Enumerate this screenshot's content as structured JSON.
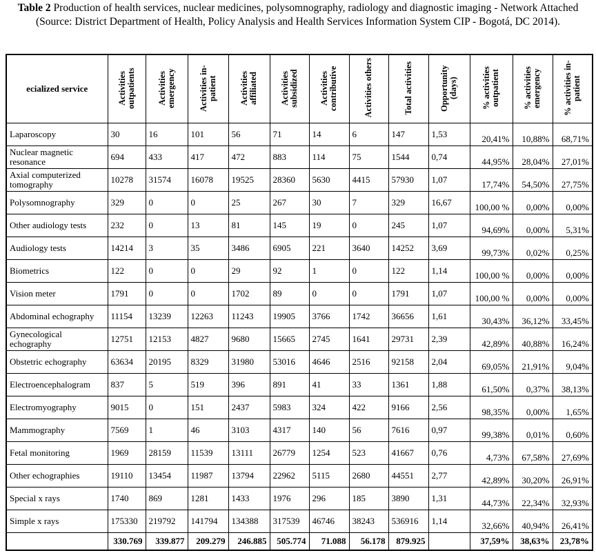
{
  "caption": {
    "label": "Table 2",
    "text": "Production of health services, nuclear medicines, polysomnography, radiology and diagnostic imaging - Network Attached (Source: District Department of Health, Policy Analysis and Health Services Information System CIP - Bogotá, DC 2014)."
  },
  "table": {
    "header": [
      "ecialized service",
      "Activities outpatients",
      "Activities emergency",
      "Activities in-patient",
      "Activities affiliated",
      "Activities subsidized",
      "Activities contributive",
      "Activities others",
      "Total activities",
      "Opportunity (days)",
      "% activities outpatient",
      "% activities emergency",
      "% activities in-patient"
    ],
    "rows": [
      [
        "Laparoscopy",
        "30",
        "16",
        "101",
        "56",
        "71",
        "14",
        "6",
        "147",
        "1,53",
        "20,41%",
        "10,88%",
        "68,71%"
      ],
      [
        "Nuclear magnetic resonance",
        "694",
        "433",
        "417",
        "472",
        "883",
        "114",
        "75",
        "1544",
        "0,74",
        "44,95%",
        "28,04%",
        "27,01%"
      ],
      [
        "Axial computerized tomography",
        "10278",
        "31574",
        "16078",
        "19525",
        "28360",
        "5630",
        "4415",
        "57930",
        "1,07",
        "17,74%",
        "54,50%",
        "27,75%"
      ],
      [
        "Polysomnography",
        "329",
        "0",
        "0",
        "25",
        "267",
        "30",
        "7",
        "329",
        "16,67",
        "100,00 %",
        "0,00%",
        "0,00%"
      ],
      [
        "Other audiology tests",
        "232",
        "0",
        "13",
        "81",
        "145",
        "19",
        "0",
        "245",
        "1,07",
        "94,69%",
        "0,00%",
        "5,31%"
      ],
      [
        "Audiology tests",
        "14214",
        "3",
        "35",
        "3486",
        "6905",
        "221",
        "3640",
        "14252",
        "3,69",
        "99,73%",
        "0,02%",
        "0,25%"
      ],
      [
        "Biometrics",
        "122",
        "0",
        "0",
        "29",
        "92",
        "1",
        "0",
        "122",
        "1,14",
        "100,00 %",
        "0,00%",
        "0,00%"
      ],
      [
        "Vision meter",
        "1791",
        "0",
        "0",
        "1702",
        "89",
        "0",
        "0",
        "1791",
        "1,07",
        "100,00 %",
        "0,00%",
        "0,00%"
      ],
      [
        "Abdominal echography",
        "11154",
        "13239",
        "12263",
        "11243",
        "19905",
        "3766",
        "1742",
        "36656",
        "1,61",
        "30,43%",
        "36,12%",
        "33,45%"
      ],
      [
        "Gynecological echography",
        "12751",
        "12153",
        "4827",
        "9680",
        "15665",
        "2745",
        "1641",
        "29731",
        "2,39",
        "42,89%",
        "40,88%",
        "16,24%"
      ],
      [
        "Obstetric echography",
        "63634",
        "20195",
        "8329",
        "31980",
        "53016",
        "4646",
        "2516",
        "92158",
        "2,04",
        "69,05%",
        "21,91%",
        "9,04%"
      ],
      [
        "Electroencephalogram",
        "837",
        "5",
        "519",
        "396",
        "891",
        "41",
        "33",
        "1361",
        "1,88",
        "61,50%",
        "0,37%",
        "38,13%"
      ],
      [
        "Electromyography",
        "9015",
        "0",
        "151",
        "2437",
        "5983",
        "324",
        "422",
        "9166",
        "2,56",
        "98,35%",
        "0,00%",
        "1,65%"
      ],
      [
        "Mammography",
        "7569",
        "1",
        "46",
        "3103",
        "4317",
        "140",
        "56",
        "7616",
        "0,97",
        "99,38%",
        "0,01%",
        "0,60%"
      ],
      [
        "Fetal monitoring",
        "1969",
        "28159",
        "11539",
        "13111",
        "26779",
        "1254",
        "523",
        "41667",
        "0,76",
        "4,73%",
        "67,58%",
        "27,69%"
      ],
      [
        "Other echographies",
        "19110",
        "13454",
        "11987",
        "13794",
        "22962",
        "5115",
        "2680",
        "44551",
        "2,77",
        "42,89%",
        "30,20%",
        "26,91%"
      ],
      [
        "Special x rays",
        "1740",
        "869",
        "1281",
        "1433",
        "1976",
        "296",
        "185",
        "3890",
        "1,31",
        "44,73%",
        "22,34%",
        "32,93%"
      ],
      [
        "Simple x rays",
        "175330",
        "219792",
        "141794",
        "134388",
        "317539",
        "46746",
        "38243",
        "536916",
        "1,14",
        "32,66%",
        "40,94%",
        "26,41%"
      ]
    ],
    "total": [
      null,
      "330.769",
      "339.877",
      "209.279",
      "246.885",
      "505.774",
      "71.088",
      "56.178",
      "879.925",
      null,
      "37,59%",
      "38,63%",
      "23,78%"
    ]
  }
}
